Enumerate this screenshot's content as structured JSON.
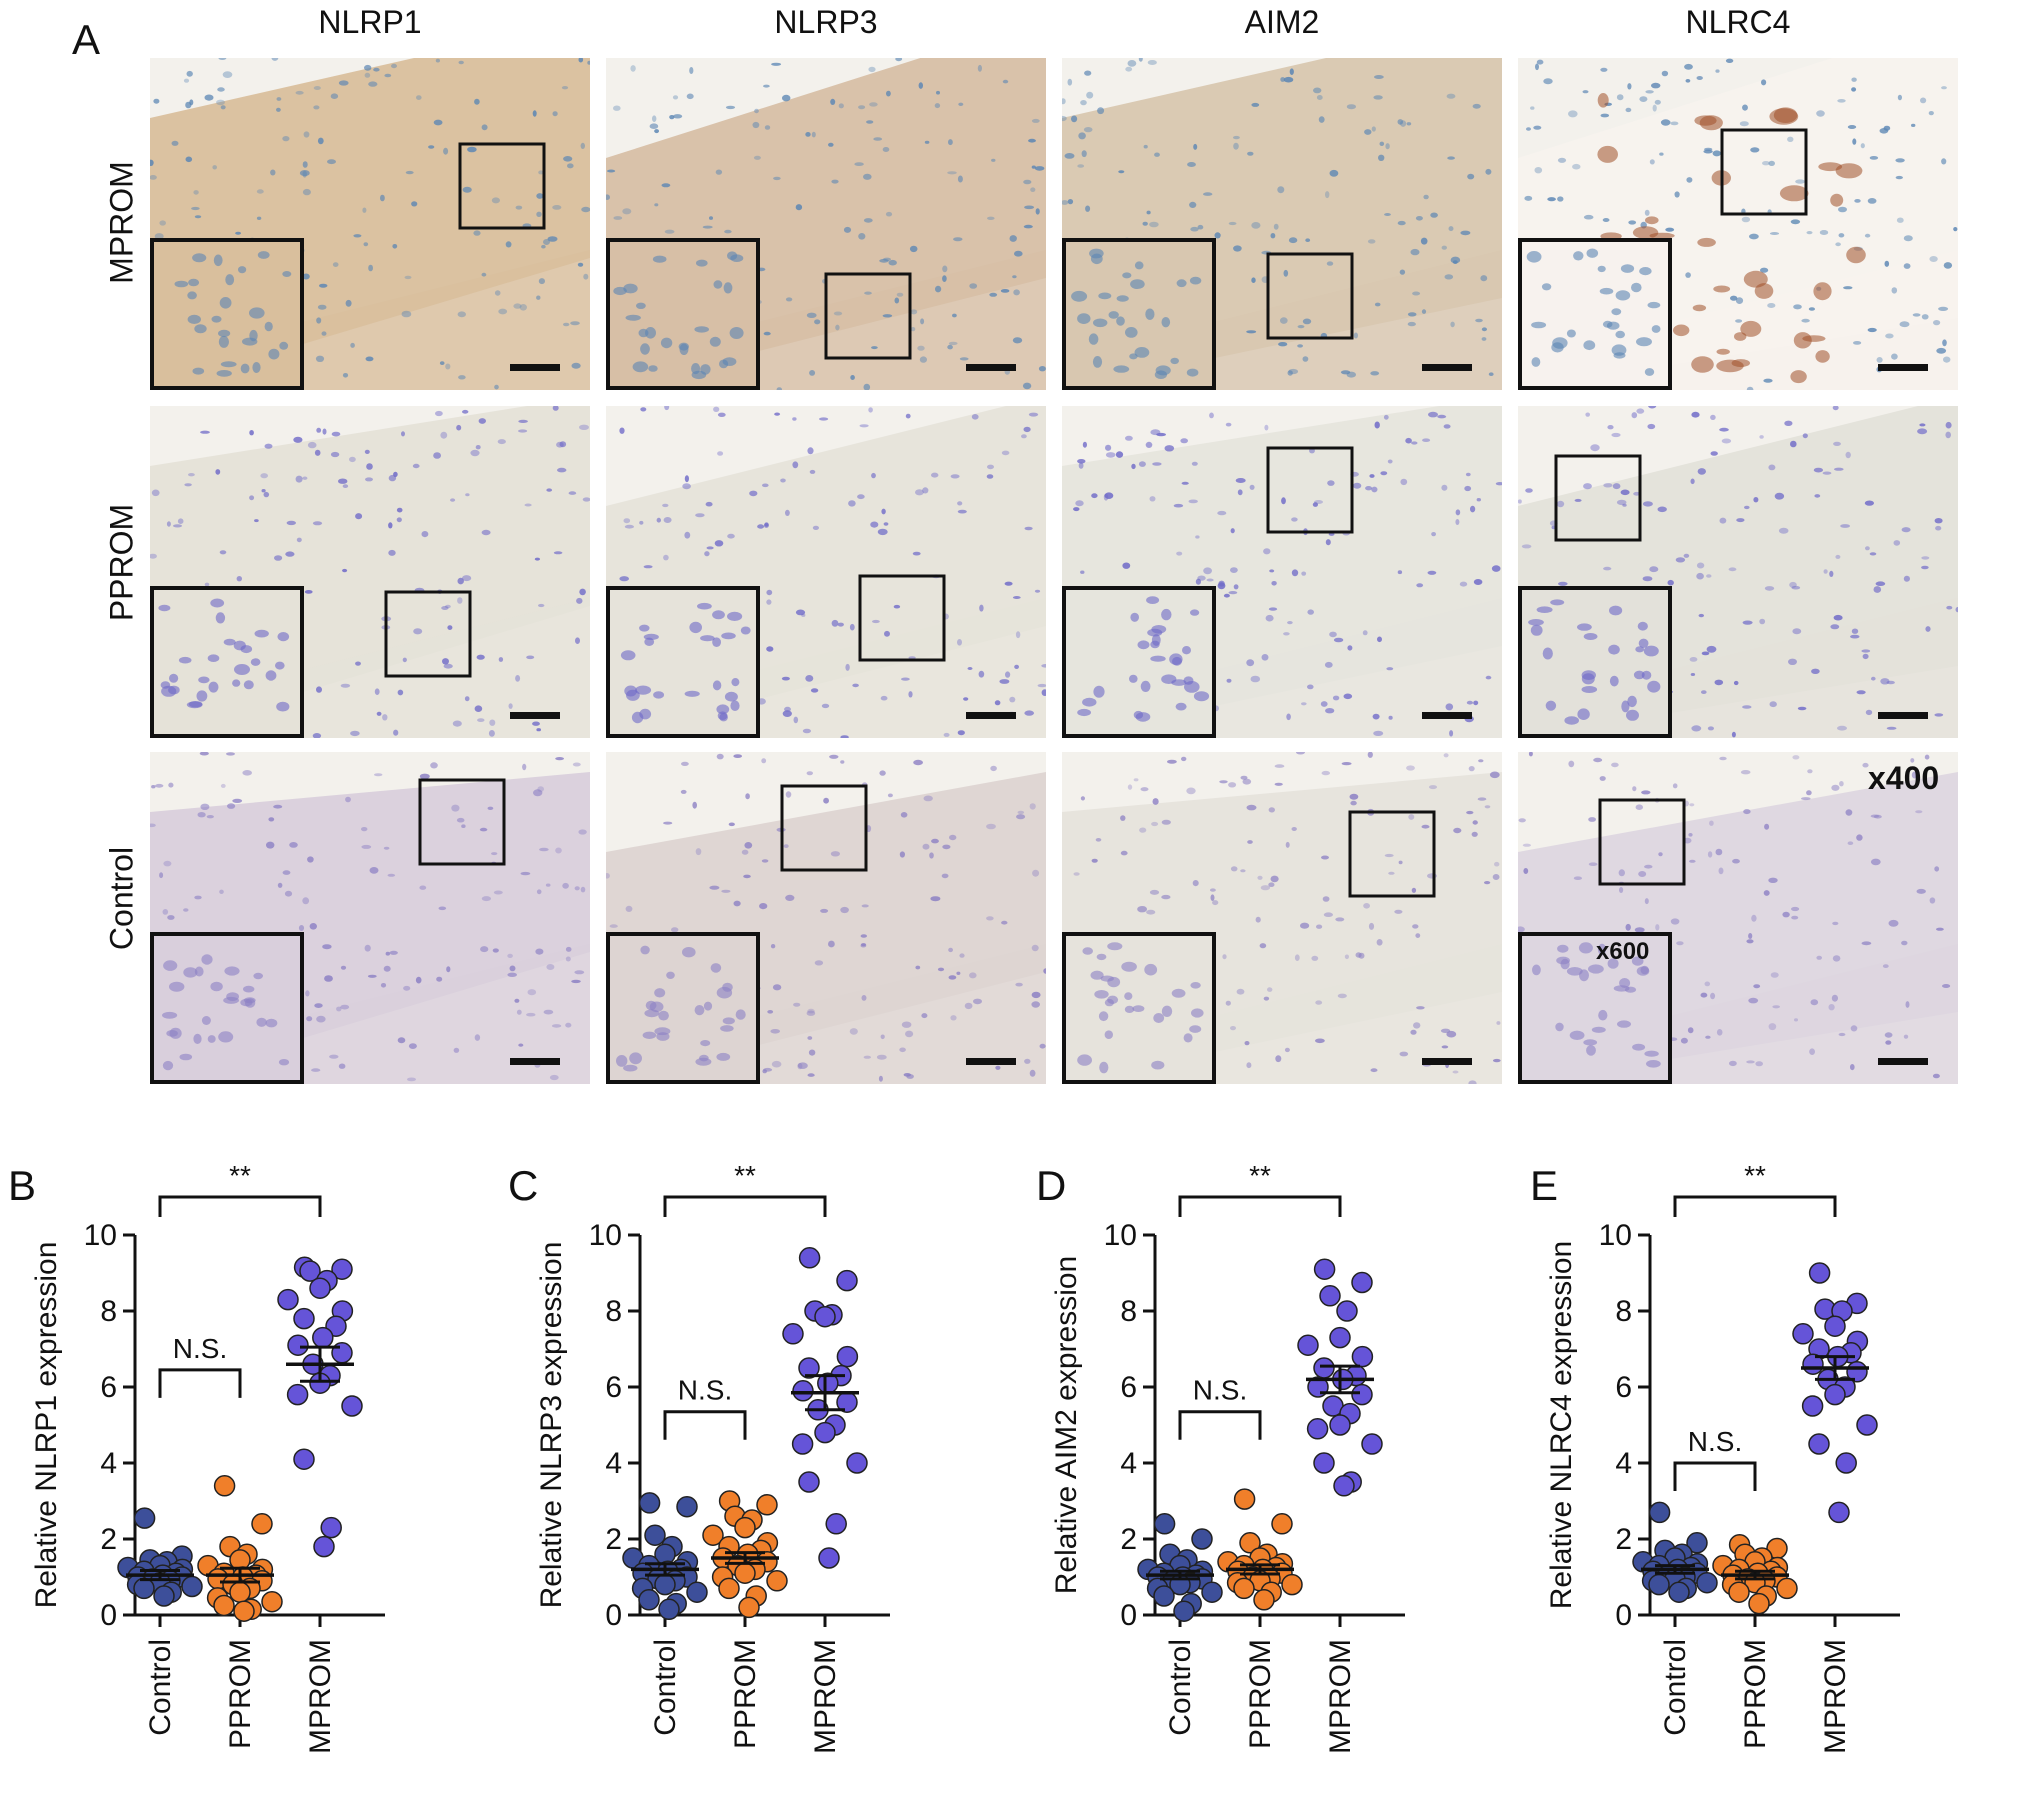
{
  "panel_a": {
    "letter": "A",
    "columns": [
      "NLRP1",
      "NLRP3",
      "AIM2",
      "NLRC4"
    ],
    "rows": [
      "MPROM",
      "PPROM",
      "Control"
    ],
    "magnification_label": "x400",
    "inset_magnification_label": "x600",
    "stain_colors": {
      "MPROM": [
        "#d9bf9d",
        "#d7bfa6",
        "#d8c7b0",
        "#f7f2ee"
      ],
      "PPROM": [
        "#e5e2d8",
        "#e6e3da",
        "#e6e5dd",
        "#e3e1da"
      ],
      "Control": [
        "#d9cfdc",
        "#ddd4d2",
        "#e6e3dc",
        "#ddd6e0"
      ]
    },
    "nuclei_colors": {
      "MPROM": "#5b86b4",
      "PPROM": "#6e69c8",
      "Control": "#8c80c4"
    },
    "strong_stain_color": "#a0502a"
  },
  "chart_data": [
    {
      "panel": "B",
      "type": "scatter",
      "title": "",
      "ylabel": "Relative NLRP1 expression",
      "categories": [
        "Control",
        "PPROM",
        "MPROM"
      ],
      "ylim": [
        0,
        10
      ],
      "yticks": [
        "0",
        "2",
        "4",
        "6",
        "8",
        "10"
      ],
      "series": [
        {
          "category": "Control",
          "color": "#3d4f9a",
          "mean": 1.05,
          "sem": 0.12,
          "values": [
            2.55,
            1.55,
            1.45,
            1.4,
            1.3,
            1.25,
            1.2,
            1.15,
            1.1,
            1.05,
            1.0,
            1.0,
            0.95,
            0.9,
            0.85,
            0.8,
            0.75,
            0.7,
            0.6,
            0.5
          ]
        },
        {
          "category": "PPROM",
          "color": "#f07f2a",
          "mean": 1.05,
          "sem": 0.18,
          "values": [
            3.4,
            2.4,
            1.8,
            1.6,
            1.45,
            1.3,
            1.2,
            1.1,
            1.05,
            1.0,
            0.95,
            0.9,
            0.8,
            0.7,
            0.6,
            0.45,
            0.35,
            0.25,
            0.15,
            0.1
          ]
        },
        {
          "category": "MPROM",
          "color": "#6554d8",
          "mean": 6.6,
          "sem": 0.45,
          "values": [
            9.15,
            9.1,
            9.05,
            8.8,
            8.6,
            8.3,
            8.0,
            7.8,
            7.6,
            7.3,
            7.1,
            6.9,
            6.6,
            6.3,
            6.1,
            5.8,
            5.5,
            4.1,
            2.3,
            1.8
          ]
        }
      ],
      "comparisons": [
        {
          "from": "Control",
          "to": "MPROM",
          "label": "**",
          "level": 11.0
        },
        {
          "from": "Control",
          "to": "PPROM",
          "label": "N.S.",
          "level": 6.45
        }
      ]
    },
    {
      "panel": "C",
      "type": "scatter",
      "title": "",
      "ylabel": "Relative NLRP3 expression",
      "categories": [
        "Control",
        "PPROM",
        "MPROM"
      ],
      "ylim": [
        0,
        10
      ],
      "yticks": [
        "0",
        "2",
        "4",
        "6",
        "8",
        "10"
      ],
      "series": [
        {
          "category": "Control",
          "color": "#3d4f9a",
          "mean": 1.2,
          "sem": 0.15,
          "values": [
            2.95,
            2.85,
            2.1,
            1.8,
            1.6,
            1.5,
            1.4,
            1.3,
            1.2,
            1.15,
            1.1,
            1.0,
            0.95,
            0.9,
            0.8,
            0.7,
            0.6,
            0.4,
            0.3,
            0.15
          ]
        },
        {
          "category": "PPROM",
          "color": "#f07f2a",
          "mean": 1.5,
          "sem": 0.14,
          "values": [
            3.0,
            2.9,
            2.6,
            2.5,
            2.3,
            2.1,
            1.9,
            1.8,
            1.7,
            1.6,
            1.5,
            1.4,
            1.3,
            1.2,
            1.1,
            1.0,
            0.9,
            0.7,
            0.5,
            0.2
          ]
        },
        {
          "category": "MPROM",
          "color": "#6554d8",
          "mean": 5.85,
          "sem": 0.45,
          "values": [
            9.4,
            8.8,
            8.0,
            7.9,
            7.85,
            7.4,
            6.8,
            6.5,
            6.3,
            6.1,
            5.9,
            5.6,
            5.4,
            5.0,
            4.8,
            4.5,
            4.0,
            3.5,
            2.4,
            1.5
          ]
        }
      ],
      "comparisons": [
        {
          "from": "Control",
          "to": "MPROM",
          "label": "**",
          "level": 11.0
        },
        {
          "from": "Control",
          "to": "PPROM",
          "label": "N.S.",
          "level": 5.35
        }
      ]
    },
    {
      "panel": "D",
      "type": "scatter",
      "title": "",
      "ylabel": "Relative AIM2 expression",
      "categories": [
        "Control",
        "PPROM",
        "MPROM"
      ],
      "ylim": [
        0,
        10
      ],
      "yticks": [
        "0",
        "2",
        "4",
        "6",
        "8",
        "10"
      ],
      "series": [
        {
          "category": "Control",
          "color": "#3d4f9a",
          "mean": 1.05,
          "sem": 0.1,
          "values": [
            2.4,
            2.0,
            1.6,
            1.45,
            1.3,
            1.2,
            1.15,
            1.1,
            1.05,
            1.0,
            1.0,
            0.95,
            0.9,
            0.85,
            0.8,
            0.7,
            0.6,
            0.5,
            0.3,
            0.1
          ]
        },
        {
          "category": "PPROM",
          "color": "#f07f2a",
          "mean": 1.2,
          "sem": 0.12,
          "values": [
            3.05,
            2.4,
            1.9,
            1.6,
            1.5,
            1.4,
            1.35,
            1.3,
            1.25,
            1.2,
            1.15,
            1.1,
            1.0,
            0.95,
            0.9,
            0.85,
            0.8,
            0.7,
            0.6,
            0.4
          ]
        },
        {
          "category": "MPROM",
          "color": "#6554d8",
          "mean": 6.2,
          "sem": 0.35,
          "values": [
            9.1,
            8.75,
            8.4,
            8.0,
            7.3,
            7.1,
            6.8,
            6.5,
            6.3,
            6.2,
            6.0,
            5.8,
            5.5,
            5.3,
            5.0,
            4.9,
            4.5,
            4.0,
            3.5,
            3.4
          ]
        }
      ],
      "comparisons": [
        {
          "from": "Control",
          "to": "MPROM",
          "label": "**",
          "level": 11.0
        },
        {
          "from": "Control",
          "to": "PPROM",
          "label": "N.S.",
          "level": 5.35
        }
      ]
    },
    {
      "panel": "E",
      "type": "scatter",
      "title": "",
      "ylabel": "Relative NLRC4 expression",
      "categories": [
        "Control",
        "PPROM",
        "MPROM"
      ],
      "ylim": [
        0,
        10
      ],
      "yticks": [
        "0",
        "2",
        "4",
        "6",
        "8",
        "10"
      ],
      "series": [
        {
          "category": "Control",
          "color": "#3d4f9a",
          "mean": 1.2,
          "sem": 0.1,
          "values": [
            2.7,
            1.9,
            1.7,
            1.6,
            1.5,
            1.4,
            1.35,
            1.3,
            1.25,
            1.2,
            1.15,
            1.1,
            1.05,
            1.0,
            0.95,
            0.9,
            0.85,
            0.8,
            0.7,
            0.6
          ]
        },
        {
          "category": "PPROM",
          "color": "#f07f2a",
          "mean": 1.05,
          "sem": 0.1,
          "values": [
            1.85,
            1.75,
            1.6,
            1.5,
            1.4,
            1.3,
            1.25,
            1.2,
            1.15,
            1.1,
            1.05,
            1.0,
            0.95,
            0.9,
            0.85,
            0.8,
            0.7,
            0.6,
            0.5,
            0.3
          ]
        },
        {
          "category": "MPROM",
          "color": "#6554d8",
          "mean": 6.5,
          "sem": 0.3,
          "values": [
            9.0,
            8.2,
            8.05,
            8.0,
            7.6,
            7.4,
            7.2,
            7.0,
            6.9,
            6.8,
            6.6,
            6.4,
            6.2,
            6.0,
            5.8,
            5.5,
            5.0,
            4.5,
            4.0,
            2.7
          ]
        }
      ],
      "comparisons": [
        {
          "from": "Control",
          "to": "MPROM",
          "label": "**",
          "level": 11.0
        },
        {
          "from": "Control",
          "to": "PPROM",
          "label": "N.S.",
          "level": 4.0
        }
      ]
    }
  ]
}
